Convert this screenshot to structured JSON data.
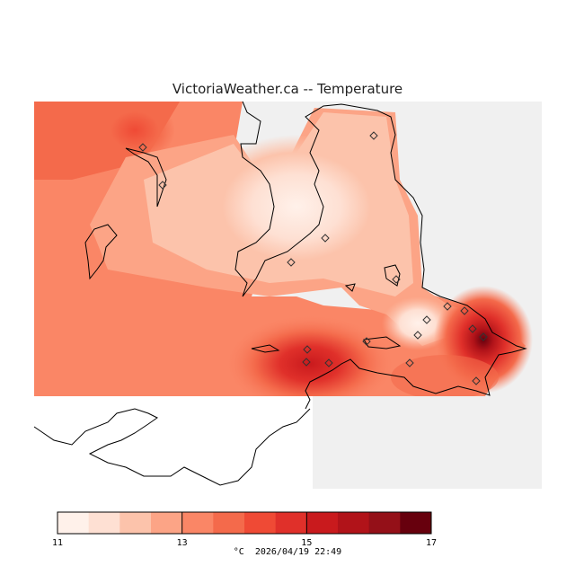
{
  "title": "VictoriaWeather.ca -- Temperature",
  "legend": {
    "unit": "°C",
    "ticks": [
      "11",
      "13",
      "15",
      "17"
    ],
    "range": [
      11,
      17
    ],
    "colors": [
      "#fff1ea",
      "#fee0d3",
      "#fcc3ab",
      "#fca486",
      "#fa8666",
      "#f46a4b",
      "#ef4a35",
      "#e0302a",
      "#c91a1d",
      "#b11319",
      "#941018",
      "#67000d"
    ]
  },
  "timestamp": "2026/04/19 22:49",
  "colors": {
    "land_outside": "#f0f0f0",
    "coast": "#000000"
  }
}
